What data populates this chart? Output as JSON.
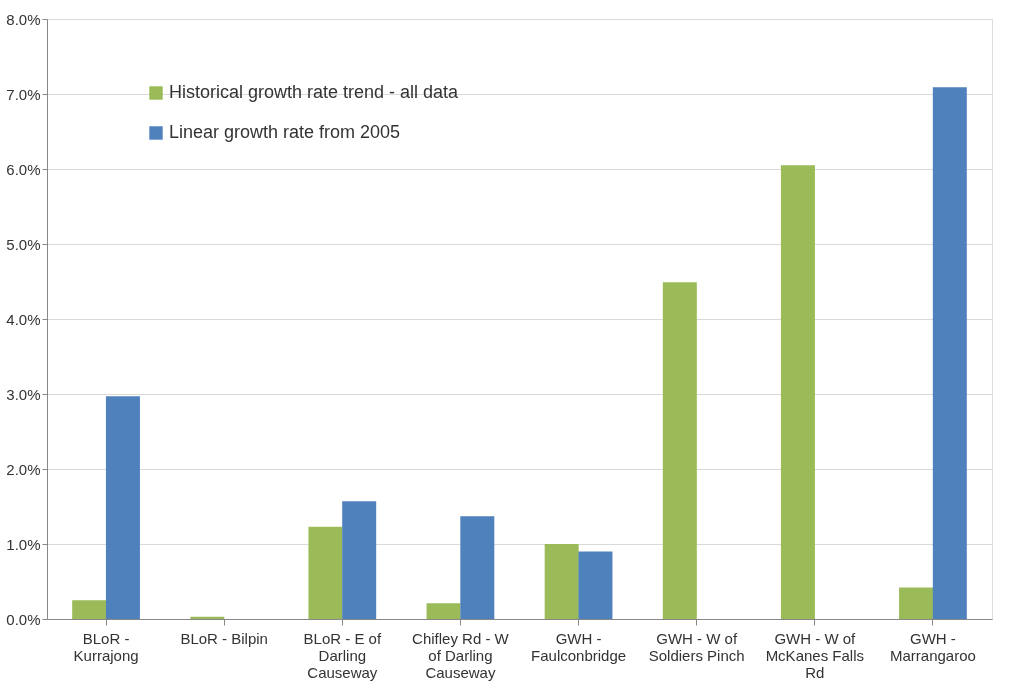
{
  "chart_data": {
    "type": "bar",
    "categories": [
      "BLoR - Kurrajong",
      "BLoR - Bilpin",
      "BLoR - E of Darling Causeway",
      "Chifley Rd - W of Darling Causeway",
      "GWH - Faulconbridge",
      "GWH - W of Soldiers Pinch",
      "GWH - W of McKanes Falls Rd",
      "GWH - Marrangaroo"
    ],
    "series": [
      {
        "name": "Historical growth rate trend - all data",
        "color": "#9bbb59",
        "values": [
          0.25,
          0.03,
          1.23,
          0.21,
          1.0,
          4.49,
          6.05,
          0.42
        ]
      },
      {
        "name": "Linear growth rate from 2005",
        "color": "#4f81bd",
        "values": [
          2.97,
          null,
          1.57,
          1.37,
          0.9,
          null,
          null,
          7.09
        ]
      }
    ],
    "ylim": [
      0,
      8
    ],
    "yticks": [
      {
        "value": 0,
        "label": "0.0%"
      },
      {
        "value": 1,
        "label": "1.0%"
      },
      {
        "value": 2,
        "label": "2.0%"
      },
      {
        "value": 3,
        "label": "3.0%"
      },
      {
        "value": 4,
        "label": "4.0%"
      },
      {
        "value": 5,
        "label": "5.0%"
      },
      {
        "value": 6,
        "label": "6.0%"
      },
      {
        "value": 7,
        "label": "7.0%"
      },
      {
        "value": 8,
        "label": "8.0%"
      }
    ],
    "grid": "y",
    "legend": "top left"
  }
}
